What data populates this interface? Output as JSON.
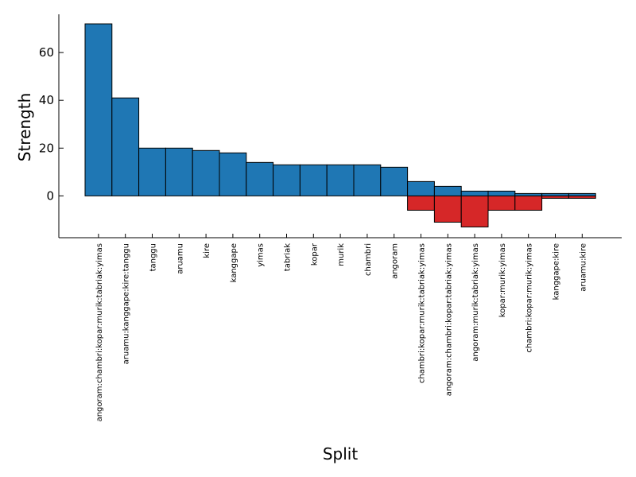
{
  "chart_data": {
    "type": "bar",
    "xlabel": "Split",
    "ylabel": "Strength",
    "ylim": [
      -17.5,
      76
    ],
    "yticks": [
      0,
      20,
      40,
      60
    ],
    "grid": false,
    "categories": [
      "angoram:chambri:kopar:murik:tabriak:yimas",
      "aruamu:kanggape:kire:tanggu",
      "tanggu",
      "aruamu",
      "kire",
      "kanggape",
      "yimas",
      "tabriak",
      "kopar",
      "murik",
      "chambri",
      "angoram",
      "chambri:kopar:murik:tabriak:yimas",
      "angoram:chambri:kopar:tabriak:yimas",
      "angoram:murik:tabriak:yimas",
      "kopar:murik:yimas",
      "chambri:kopar:murik:yimas",
      "kanggape:kire",
      "aruamu:kire"
    ],
    "series": [
      {
        "color": "#1f77b4",
        "values": [
          72,
          41,
          20,
          20,
          19,
          18,
          14,
          13,
          13,
          13,
          13,
          12,
          6,
          4,
          2,
          2,
          1,
          1,
          1
        ]
      },
      {
        "color": "#d62728",
        "values": [
          0,
          0,
          0,
          0,
          0,
          0,
          0,
          0,
          0,
          0,
          0,
          0,
          -6,
          -11,
          -13,
          -6,
          -6,
          -1,
          -1
        ]
      }
    ]
  }
}
